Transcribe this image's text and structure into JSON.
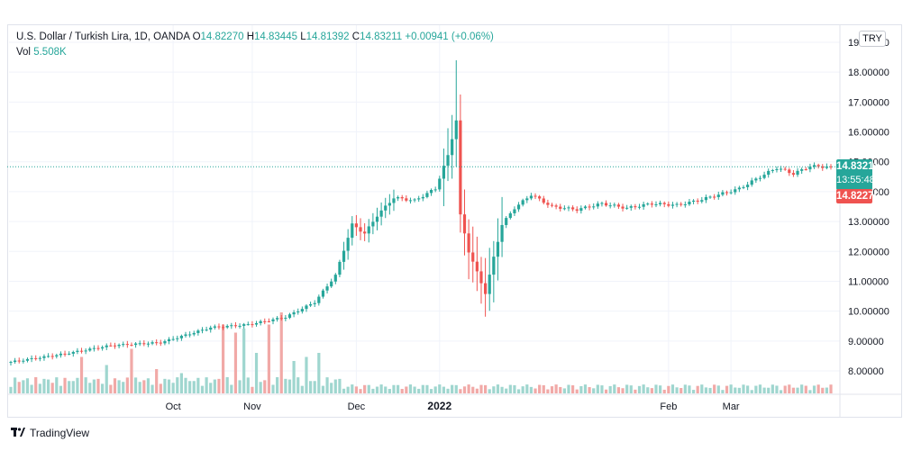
{
  "legend": {
    "symbol": "U.S. Dollar / Turkish Lira, 1D, OANDA",
    "o_label": "O",
    "o_value": "14.82270",
    "h_label": "H",
    "h_value": "14.83445",
    "l_label": "L",
    "l_value": "14.81392",
    "c_label": "C",
    "c_value": "14.83211",
    "change": "+0.00941 (+0.06%)",
    "vol_label": "Vol",
    "vol_value": "5.508K"
  },
  "currency_button": "TRY",
  "last_price": "14.83211",
  "countdown": "13:55:48",
  "open_price": "14.82270",
  "footer": {
    "brand": "TradingView",
    "logo_icon": "tradingview-logo-icon"
  },
  "colors": {
    "up": "#26a69a",
    "down": "#ef5350",
    "volume_up": "#9fd6cf",
    "volume_down": "#f1a9a7"
  },
  "chart_data": {
    "type": "candlestick",
    "y_ticks": [
      "19.00000",
      "18.00000",
      "17.00000",
      "16.00000",
      "15.00000",
      "14.00000",
      "13.00000",
      "12.00000",
      "11.00000",
      "10.00000",
      "9.00000",
      "8.00000"
    ],
    "x_ticks": [
      "Oct",
      "Nov",
      "Dec",
      "2022",
      "Feb",
      "Mar"
    ],
    "ylim": [
      7.2,
      19.6
    ],
    "grid": true,
    "last_close": 14.83211,
    "waypoints": [
      {
        "i": 0,
        "c": 8.3
      },
      {
        "i": 12,
        "c": 8.55
      },
      {
        "i": 24,
        "c": 8.85
      },
      {
        "i": 36,
        "c": 8.95
      },
      {
        "i": 48,
        "c": 9.45
      },
      {
        "i": 57,
        "c": 9.55
      },
      {
        "i": 66,
        "c": 9.8
      },
      {
        "i": 73,
        "c": 10.3
      },
      {
        "i": 78,
        "c": 11.2
      },
      {
        "i": 82,
        "c": 12.9
      },
      {
        "i": 85,
        "c": 12.6
      },
      {
        "i": 88,
        "c": 13.2
      },
      {
        "i": 92,
        "c": 13.8
      },
      {
        "i": 97,
        "c": 13.7
      },
      {
        "i": 102,
        "c": 14.1
      },
      {
        "i": 105,
        "c": 15.2
      },
      {
        "i": 107,
        "c": 16.4
      },
      {
        "i": 108,
        "c": 13.2
      },
      {
        "i": 110,
        "c": 12.0
      },
      {
        "i": 112,
        "c": 11.3
      },
      {
        "i": 114,
        "c": 10.6
      },
      {
        "i": 116,
        "c": 11.8
      },
      {
        "i": 118,
        "c": 12.9
      },
      {
        "i": 121,
        "c": 13.45
      },
      {
        "i": 125,
        "c": 13.9
      },
      {
        "i": 130,
        "c": 13.5
      },
      {
        "i": 136,
        "c": 13.4
      },
      {
        "i": 142,
        "c": 13.6
      },
      {
        "i": 148,
        "c": 13.45
      },
      {
        "i": 154,
        "c": 13.6
      },
      {
        "i": 160,
        "c": 13.55
      },
      {
        "i": 165,
        "c": 13.7
      },
      {
        "i": 170,
        "c": 13.9
      },
      {
        "i": 175,
        "c": 14.1
      },
      {
        "i": 180,
        "c": 14.5
      },
      {
        "i": 184,
        "c": 14.8
      },
      {
        "i": 188,
        "c": 14.6
      },
      {
        "i": 192,
        "c": 14.85
      },
      {
        "i": 197,
        "c": 14.83211
      }
    ],
    "volume_spikes": [
      {
        "i": 17,
        "v": 0.45
      },
      {
        "i": 23,
        "v": 0.35
      },
      {
        "i": 29,
        "v": 0.55
      },
      {
        "i": 35,
        "v": 0.3
      },
      {
        "i": 41,
        "v": 0.25
      },
      {
        "i": 51,
        "v": 0.85
      },
      {
        "i": 54,
        "v": 0.75
      },
      {
        "i": 56,
        "v": 0.8
      },
      {
        "i": 59,
        "v": 0.5
      },
      {
        "i": 62,
        "v": 0.85
      },
      {
        "i": 65,
        "v": 1.0
      },
      {
        "i": 68,
        "v": 0.4
      },
      {
        "i": 71,
        "v": 0.45
      },
      {
        "i": 74,
        "v": 0.5
      }
    ],
    "volume_max_label": "5.508K"
  }
}
